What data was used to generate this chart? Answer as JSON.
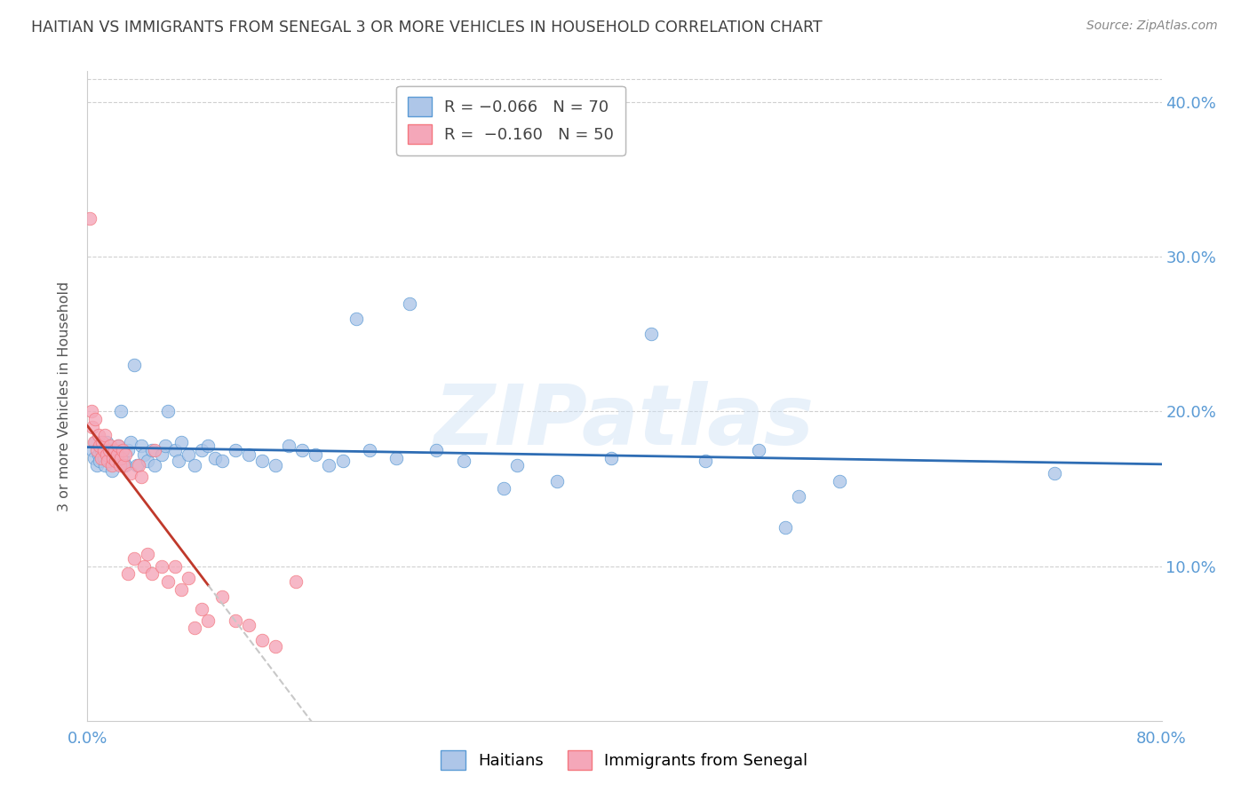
{
  "title": "HAITIAN VS IMMIGRANTS FROM SENEGAL 3 OR MORE VEHICLES IN HOUSEHOLD CORRELATION CHART",
  "source": "Source: ZipAtlas.com",
  "ylabel": "3 or more Vehicles in Household",
  "xlim": [
    0.0,
    0.8
  ],
  "ylim": [
    0.0,
    0.42
  ],
  "y_tick_right_labels": [
    "10.0%",
    "20.0%",
    "30.0%",
    "40.0%"
  ],
  "watermark": "ZIPatlas",
  "haitians_x": [
    0.004,
    0.005,
    0.006,
    0.007,
    0.008,
    0.009,
    0.01,
    0.011,
    0.012,
    0.013,
    0.014,
    0.015,
    0.016,
    0.017,
    0.018,
    0.019,
    0.02,
    0.021,
    0.022,
    0.023,
    0.025,
    0.027,
    0.028,
    0.03,
    0.032,
    0.035,
    0.037,
    0.04,
    0.042,
    0.045,
    0.048,
    0.05,
    0.055,
    0.058,
    0.06,
    0.065,
    0.068,
    0.07,
    0.075,
    0.08,
    0.085,
    0.09,
    0.095,
    0.1,
    0.11,
    0.12,
    0.13,
    0.14,
    0.15,
    0.16,
    0.17,
    0.18,
    0.19,
    0.2,
    0.21,
    0.23,
    0.24,
    0.26,
    0.28,
    0.31,
    0.32,
    0.35,
    0.39,
    0.42,
    0.46,
    0.5,
    0.52,
    0.53,
    0.56,
    0.72
  ],
  "haitians_y": [
    0.175,
    0.17,
    0.18,
    0.165,
    0.172,
    0.168,
    0.175,
    0.178,
    0.17,
    0.165,
    0.18,
    0.172,
    0.168,
    0.175,
    0.162,
    0.17,
    0.175,
    0.168,
    0.172,
    0.178,
    0.2,
    0.168,
    0.165,
    0.175,
    0.18,
    0.23,
    0.165,
    0.178,
    0.172,
    0.168,
    0.175,
    0.165,
    0.172,
    0.178,
    0.2,
    0.175,
    0.168,
    0.18,
    0.172,
    0.165,
    0.175,
    0.178,
    0.17,
    0.168,
    0.175,
    0.172,
    0.168,
    0.165,
    0.178,
    0.175,
    0.172,
    0.165,
    0.168,
    0.26,
    0.175,
    0.17,
    0.27,
    0.175,
    0.168,
    0.15,
    0.165,
    0.155,
    0.17,
    0.25,
    0.168,
    0.175,
    0.125,
    0.145,
    0.155,
    0.16
  ],
  "senegal_x": [
    0.002,
    0.003,
    0.004,
    0.005,
    0.006,
    0.007,
    0.008,
    0.009,
    0.01,
    0.011,
    0.012,
    0.013,
    0.014,
    0.015,
    0.016,
    0.017,
    0.018,
    0.019,
    0.02,
    0.021,
    0.022,
    0.023,
    0.024,
    0.025,
    0.026,
    0.027,
    0.028,
    0.03,
    0.032,
    0.035,
    0.038,
    0.04,
    0.042,
    0.045,
    0.048,
    0.05,
    0.055,
    0.06,
    0.065,
    0.07,
    0.075,
    0.08,
    0.085,
    0.09,
    0.1,
    0.11,
    0.12,
    0.13,
    0.14,
    0.155
  ],
  "senegal_y": [
    0.325,
    0.2,
    0.19,
    0.18,
    0.195,
    0.175,
    0.185,
    0.178,
    0.17,
    0.18,
    0.175,
    0.185,
    0.172,
    0.168,
    0.175,
    0.178,
    0.165,
    0.17,
    0.175,
    0.168,
    0.172,
    0.178,
    0.165,
    0.17,
    0.175,
    0.165,
    0.172,
    0.095,
    0.16,
    0.105,
    0.165,
    0.158,
    0.1,
    0.108,
    0.095,
    0.175,
    0.1,
    0.09,
    0.1,
    0.085,
    0.092,
    0.06,
    0.072,
    0.065,
    0.08,
    0.065,
    0.062,
    0.052,
    0.048,
    0.09
  ],
  "blue_color": "#5b9bd5",
  "pink_color": "#f4777f",
  "blue_light": "#aec6e8",
  "pink_light": "#f4a7b9",
  "trend_blue": "#2e6db4",
  "trend_pink": "#c0392b",
  "trend_gray": "#c8c8c8",
  "axis_color": "#5b9bd5",
  "grid_color": "#d0d0d0",
  "title_color": "#404040",
  "source_color": "#888888"
}
